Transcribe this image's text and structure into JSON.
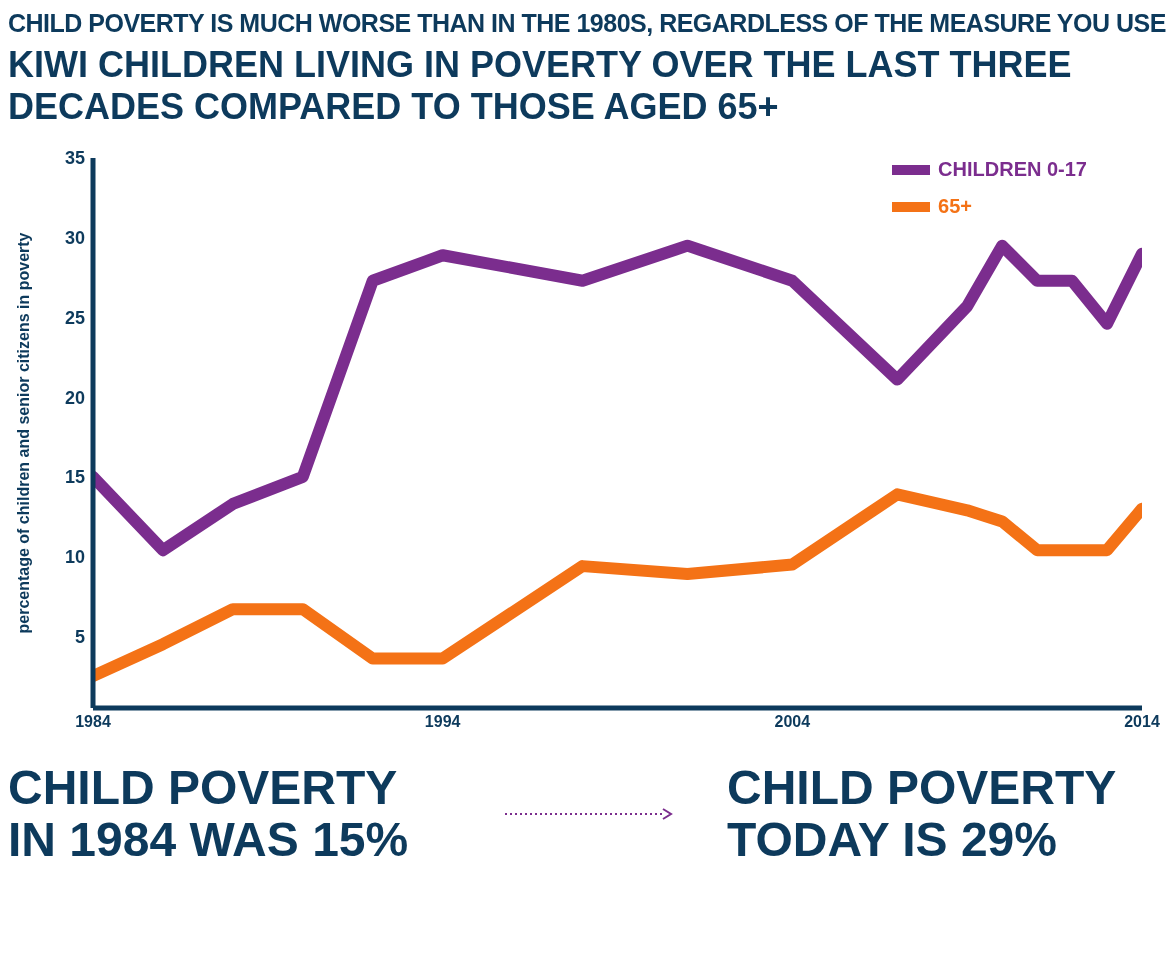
{
  "chart_data": {
    "type": "line",
    "subtitle": "CHILD POVERTY IS MUCH WORSE THAN IN THE 1980S, REGARDLESS OF THE MEASURE YOU USE",
    "title": "KIWI CHILDREN LIVING IN POVERTY OVER THE LAST THREE DECADES COMPARED TO THOSE AGED 65+",
    "ylabel": "percentage of children and senior citizens in poverty",
    "x": [
      1984,
      1986,
      1988,
      1990,
      1992,
      1994,
      1998,
      2001,
      2004,
      2007,
      2009,
      2010,
      2011,
      2012,
      2013,
      2014
    ],
    "series": [
      {
        "name": "CHILDREN 0-17",
        "color": "#7b2d8e",
        "values": [
          15,
          10.4,
          13.3,
          15,
          27.3,
          28.9,
          27.3,
          29.5,
          27.3,
          21.1,
          25.7,
          29.5,
          27.3,
          27.3,
          24.6,
          29
        ]
      },
      {
        "name": "65+",
        "color": "#f47216",
        "values": [
          2.5,
          4.5,
          6.7,
          6.7,
          3.6,
          3.6,
          9.4,
          8.9,
          9.5,
          13.9,
          12.9,
          12.2,
          10.4,
          10.4,
          10.4,
          13
        ]
      }
    ],
    "xlim": [
      1984,
      2014
    ],
    "xticks": [
      1984,
      1994,
      2004,
      2014
    ],
    "ylim": [
      0.5,
      35
    ],
    "yticks": [
      5,
      10,
      15,
      20,
      25,
      30,
      35
    ],
    "grid": false,
    "legend": "right",
    "annotations": [
      "CHILD POVERTY IN 1984 WAS 15%",
      "CHILD POVERTY TODAY IS 29%"
    ]
  }
}
